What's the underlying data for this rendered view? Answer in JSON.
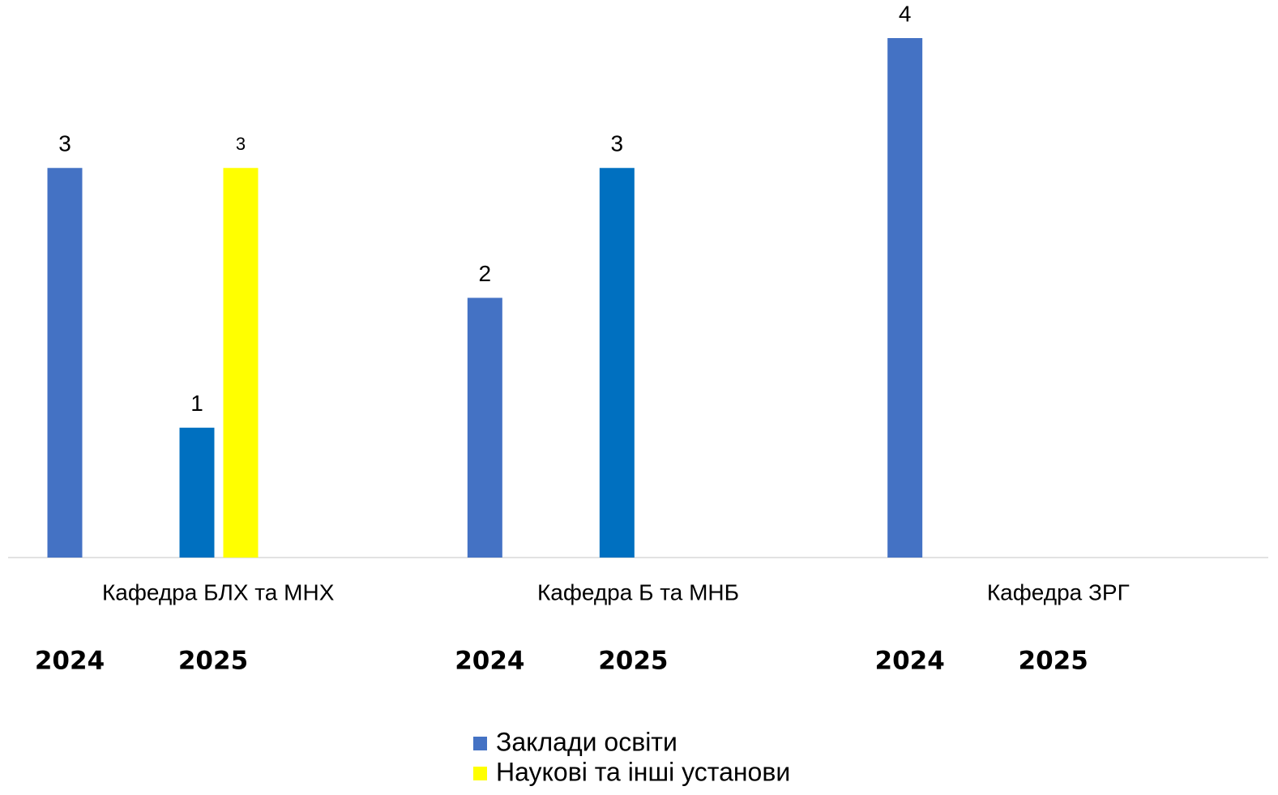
{
  "chart_data": {
    "type": "bar",
    "categories": [
      "Кафедра БЛХ та МНХ",
      "Кафедра Б та МНБ",
      "Кафедра ЗРГ"
    ],
    "years": [
      "2024",
      "2025"
    ],
    "series": [
      {
        "name": "Заклади освіти",
        "color": "#4472c4",
        "year_colors": [
          "#4472c4",
          "#0070c0"
        ],
        "values": [
          [
            3,
            1
          ],
          [
            2,
            3
          ],
          [
            4,
            null
          ]
        ]
      },
      {
        "name": "Наукові та інші установи",
        "color": "#ffff00",
        "year_colors": [
          "#ffff00",
          "#ffff00"
        ],
        "values": [
          [
            null,
            3
          ],
          [
            null,
            null
          ],
          [
            null,
            null
          ]
        ]
      }
    ],
    "ylim": [
      0,
      4
    ]
  }
}
